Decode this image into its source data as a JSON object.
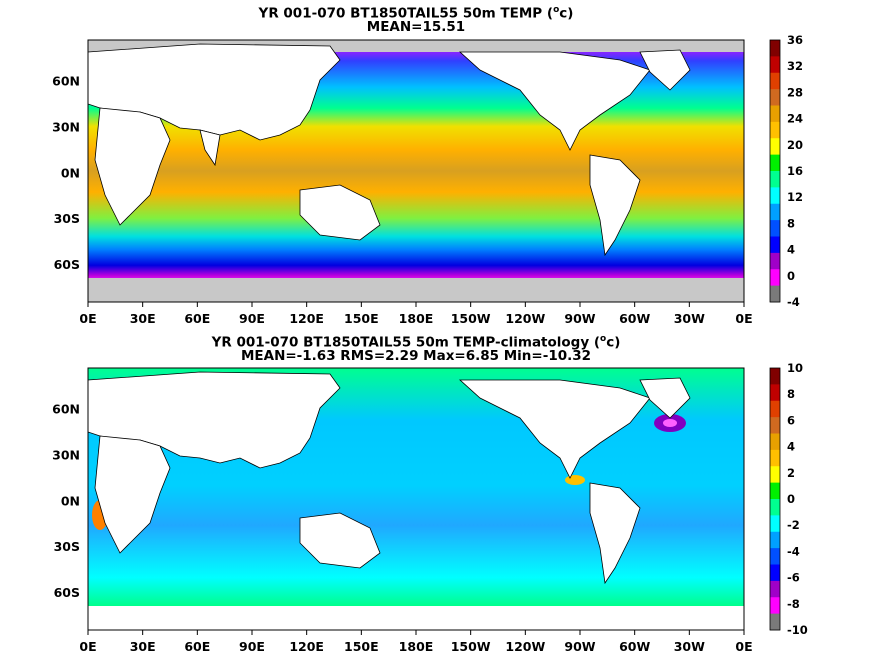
{
  "panel1": {
    "title": "YR 001-070 BT1850TAIL55 50m TEMP (",
    "unit_sup": "o",
    "unit": "c)",
    "subtitle": "MEAN=15.51",
    "colorbar_ticks": [
      "36",
      "32",
      "28",
      "24",
      "20",
      "16",
      "12",
      "8",
      "4",
      "0",
      "-4"
    ]
  },
  "panel2": {
    "title": "YR 001-070 BT1850TAIL55 50m TEMP-climatology (",
    "unit_sup": "o",
    "unit": "c)",
    "subtitle": "MEAN=-1.63   RMS=2.29   Max=6.85   Min=-10.32",
    "colorbar_ticks": [
      "10",
      "8",
      "6",
      "4",
      "2",
      "0",
      "-2",
      "-4",
      "-6",
      "-8",
      "-10"
    ]
  },
  "lon_labels": [
    "0E",
    "30E",
    "60E",
    "90E",
    "120E",
    "150E",
    "180E",
    "150W",
    "120W",
    "90W",
    "60W",
    "30W",
    "0E"
  ],
  "lat_labels": [
    "60N",
    "30N",
    "0N",
    "30S",
    "60S"
  ],
  "colors": {
    "temp_scale": [
      "#7a7a7a",
      "#ff00ff",
      "#a000c8",
      "#0000ff",
      "#0050ff",
      "#00a0ff",
      "#00ffff",
      "#00ff90",
      "#00f000",
      "#ffff00",
      "#ffc000",
      "#e8a000",
      "#d06a20",
      "#e04000",
      "#c00000",
      "#800000"
    ],
    "land": "#ffffff",
    "ice": "#c8c8c8"
  }
}
